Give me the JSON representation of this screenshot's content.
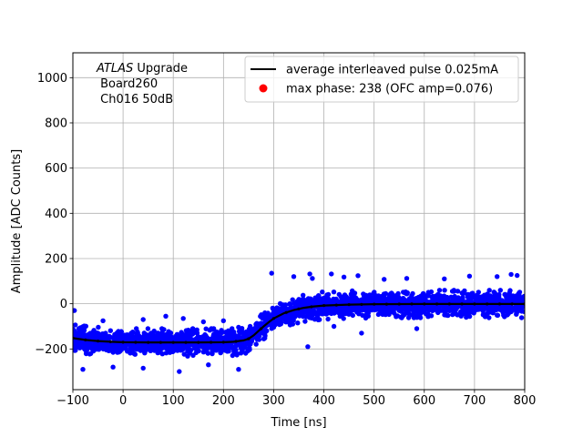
{
  "chart_data": {
    "type": "scatter",
    "xlabel": "Time [ns]",
    "ylabel": "Amplitude [ADC Counts]",
    "xlim": [
      -100,
      800
    ],
    "ylim": [
      -380,
      1110
    ],
    "xticks": [
      -100,
      0,
      100,
      200,
      300,
      400,
      500,
      600,
      700,
      800
    ],
    "yticks": [
      -200,
      0,
      200,
      400,
      600,
      800,
      1000
    ],
    "xtick_labels": [
      "−100",
      "0",
      "100",
      "200",
      "300",
      "400",
      "500",
      "600",
      "700",
      "800"
    ],
    "ytick_labels": [
      "−200",
      "0",
      "200",
      "400",
      "600",
      "800",
      "1000"
    ],
    "grid": true,
    "annotation": {
      "italic_part": "ATLAS",
      "line1_rest": " Upgrade",
      "line2": " Board260",
      "line3": " Ch016 50dB"
    },
    "legend": {
      "placement": "top-right",
      "entries": [
        {
          "label": "average interleaved pulse 0.025mA",
          "marker": "line",
          "color": "#000000"
        },
        {
          "label": "max phase: 238 (OFC amp=0.076)",
          "marker": "dot",
          "color": "#ff0000"
        }
      ]
    },
    "series": [
      {
        "name": "average interleaved pulse 0.025mA",
        "kind": "line",
        "color": "#000000",
        "x": [
          -100,
          -75,
          -50,
          -25,
          0,
          50,
          100,
          150,
          200,
          220,
          240,
          250,
          260,
          270,
          280,
          290,
          300,
          320,
          340,
          360,
          380,
          400,
          450,
          500,
          600,
          700,
          800
        ],
        "y": [
          -152,
          -160,
          -165,
          -168,
          -170,
          -171,
          -171,
          -171,
          -170,
          -168,
          -162,
          -155,
          -140,
          -120,
          -100,
          -82,
          -65,
          -42,
          -28,
          -18,
          -12,
          -8,
          -4,
          -2,
          -1,
          -1,
          -1
        ]
      },
      {
        "name": "samples",
        "kind": "scatter",
        "color": "#0000ff",
        "band_halfwidth": 45,
        "outliers": [
          {
            "x": 296,
            "y": 135
          },
          {
            "x": 340,
            "y": 120
          },
          {
            "x": 372,
            "y": 132
          },
          {
            "x": 377,
            "y": 112
          },
          {
            "x": 415,
            "y": 132
          },
          {
            "x": 440,
            "y": 118
          },
          {
            "x": 468,
            "y": 124
          },
          {
            "x": 520,
            "y": 108
          },
          {
            "x": 565,
            "y": 112
          },
          {
            "x": 640,
            "y": 110
          },
          {
            "x": 690,
            "y": 122
          },
          {
            "x": 745,
            "y": 120
          },
          {
            "x": 773,
            "y": 130
          },
          {
            "x": 785,
            "y": 125
          },
          {
            "x": 475,
            "y": -130
          },
          {
            "x": 368,
            "y": -190
          },
          {
            "x": 585,
            "y": -110
          },
          {
            "x": 420,
            "y": -100
          },
          {
            "x": 120,
            "y": -65
          },
          {
            "x": 85,
            "y": -55
          },
          {
            "x": 40,
            "y": -70
          },
          {
            "x": -40,
            "y": -75
          },
          {
            "x": 160,
            "y": -80
          },
          {
            "x": 200,
            "y": -75
          },
          {
            "x": -80,
            "y": -290
          },
          {
            "x": 112,
            "y": -300
          },
          {
            "x": 40,
            "y": -285
          },
          {
            "x": -97,
            "y": -30
          },
          {
            "x": 230,
            "y": -290
          },
          {
            "x": 170,
            "y": -270
          },
          {
            "x": -20,
            "y": -280
          }
        ]
      },
      {
        "name": "max phase: 238 (OFC amp=0.076)",
        "kind": "point",
        "color": "#ff0000",
        "x": 238,
        "y": -165
      }
    ]
  }
}
